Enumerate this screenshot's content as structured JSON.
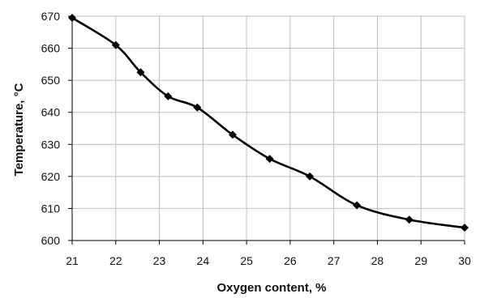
{
  "chart_data": {
    "type": "line",
    "title": "",
    "xlabel": "Oxygen content, %",
    "ylabel": "Temperature, °C",
    "xlim": [
      21,
      30
    ],
    "ylim": [
      600,
      670
    ],
    "x_ticks": [
      21,
      22,
      23,
      24,
      25,
      26,
      27,
      28,
      29,
      30
    ],
    "y_ticks": [
      600,
      610,
      620,
      630,
      640,
      650,
      660,
      670
    ],
    "grid": true,
    "legend": "none",
    "series": [
      {
        "x": [
          21.0,
          22.0,
          22.57,
          23.2,
          23.87,
          24.68,
          25.53,
          26.45,
          27.53,
          28.73,
          30.0
        ],
        "y": [
          669.5,
          661.0,
          652.5,
          645.0,
          641.5,
          633.0,
          625.5,
          620.0,
          611.0,
          606.5,
          604.0
        ],
        "marker": "diamond",
        "color": "#000000"
      }
    ]
  }
}
